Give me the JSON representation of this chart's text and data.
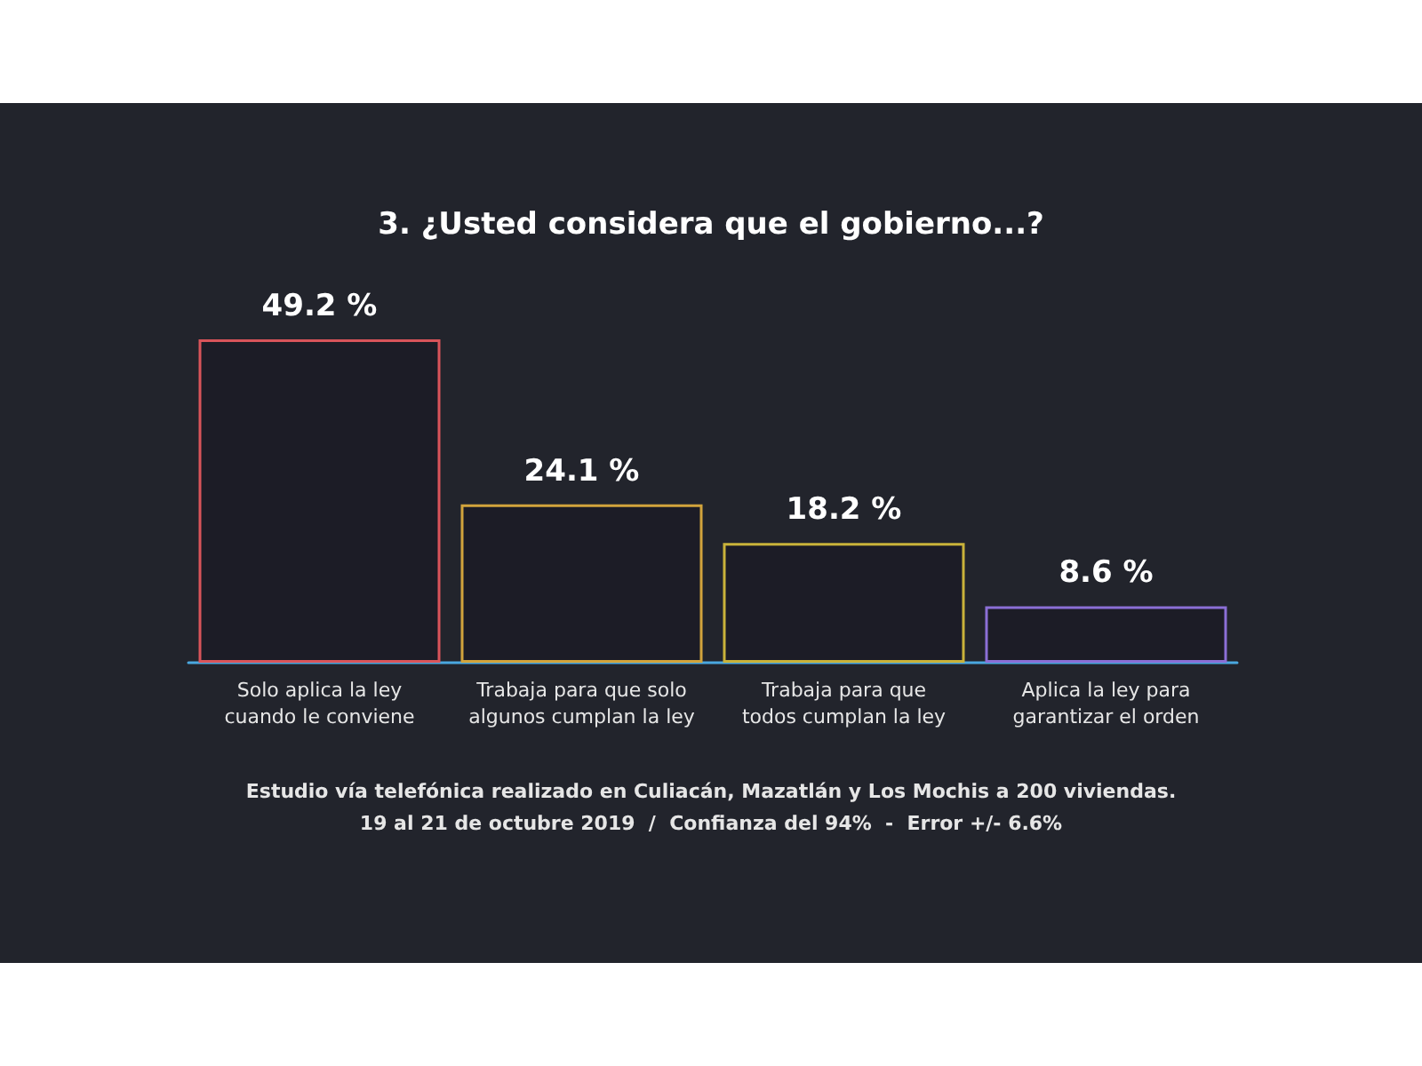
{
  "chart_data": {
    "type": "bar",
    "title": "3. ¿Usted considera que el gobierno...?",
    "categories": [
      "Solo aplica la ley\ncuando le conviene",
      "Trabaja para que solo\nalgunos cumplan la ley",
      "Trabaja para que\ntodos cumplan la ley",
      "Aplica la ley para\ngarantizar el orden"
    ],
    "values": [
      49.2,
      24.1,
      18.2,
      8.6
    ],
    "colors": [
      "#d9545a",
      "#d2a43c",
      "#c9b23a",
      "#8b6fd6"
    ],
    "value_labels": [
      "49.2 %",
      "24.1 %",
      "18.2 %",
      "8.6 %"
    ],
    "annotations": [
      "Estudio vía telefónica realizado en Culiacán, Mazatlán y Los Mochis a 200 viviendas.",
      "19 al 21 de octubre 2019  /  Confianza del 94%  -  Error +/- 6.6%"
    ]
  }
}
